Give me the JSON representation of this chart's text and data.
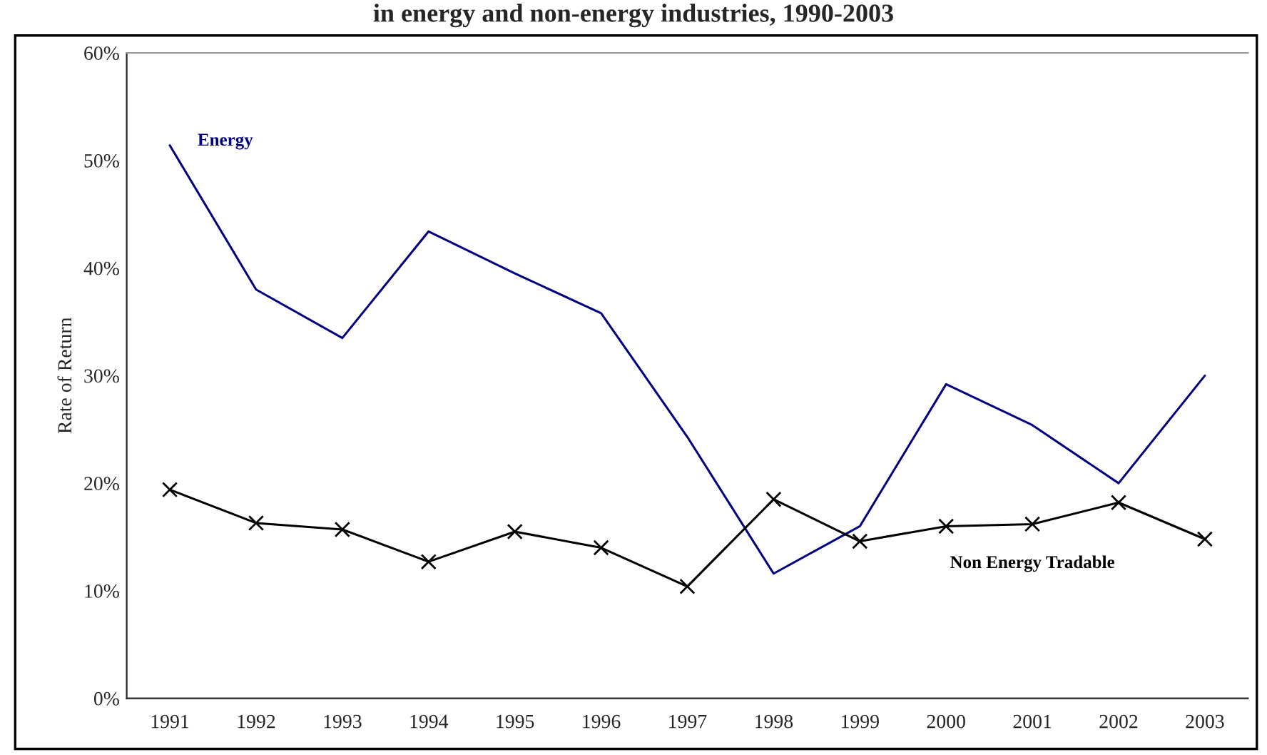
{
  "chart_data": {
    "type": "line",
    "title": "in energy and non-energy industries, 1990-2003",
    "ylabel": "Rate of Return",
    "categories": [
      "1991",
      "1992",
      "1993",
      "1994",
      "1995",
      "1996",
      "1997",
      "1998",
      "1999",
      "2000",
      "2001",
      "2002",
      "2003"
    ],
    "series": [
      {
        "name": "Energy",
        "color": "#000080",
        "marker": "none",
        "values": [
          51.4,
          38.0,
          33.5,
          43.4,
          39.5,
          35.8,
          24.3,
          11.6,
          16.0,
          29.2,
          25.4,
          20.0,
          30.0
        ]
      },
      {
        "name": "Non Energy Tradable",
        "color": "#000000",
        "marker": "cross",
        "values": [
          19.4,
          16.3,
          15.7,
          12.7,
          15.5,
          14.0,
          10.4,
          18.5,
          14.6,
          16.0,
          16.2,
          18.2,
          14.8
        ]
      }
    ],
    "ylim": [
      0,
      60
    ],
    "yticks": [
      {
        "value": 0,
        "label": "0%"
      },
      {
        "value": 10,
        "label": "10%"
      },
      {
        "value": 20,
        "label": "20%"
      },
      {
        "value": 30,
        "label": "30%"
      },
      {
        "value": 40,
        "label": "40%"
      },
      {
        "value": 50,
        "label": "50%"
      },
      {
        "value": 60,
        "label": "60%"
      }
    ],
    "grid": false,
    "legend": false
  }
}
